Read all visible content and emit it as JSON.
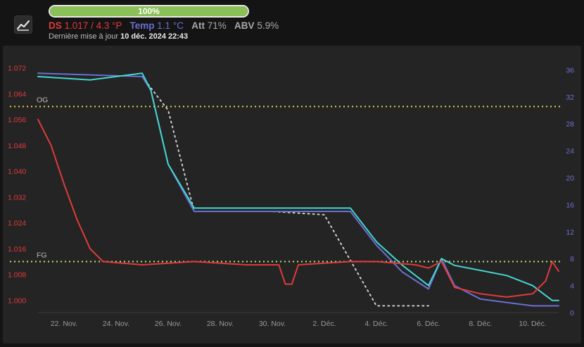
{
  "header": {
    "progress": {
      "value": 1.0,
      "label": "100%"
    },
    "stats": {
      "ds_label": "DS",
      "ds_value": "1.017 / 4.3 °P",
      "temp_label": "Temp",
      "temp_value": "1.1 °C",
      "att_label": "Att",
      "att_value": "71%",
      "abv_label": "ABV",
      "abv_value": "5.9%"
    },
    "updated_prefix": "Dernière mise à jour",
    "updated_value": "10 déc. 2024 22:43"
  },
  "colors": {
    "ds": "#e03a3a",
    "temp": "#6a6fcf",
    "tilt_temp": "#44d6d0",
    "og_line": "#e8d24a",
    "fg_line": "#b8e07a",
    "dotted": "#cfcfcf",
    "progress": "#8bbf58",
    "att": "#a9a9a9",
    "abv": "#a9a9a9"
  },
  "icons": {
    "app": "line-chart-icon"
  },
  "chart_data": {
    "type": "line",
    "x_labels": [
      "22. Nov.",
      "24. Nov.",
      "26. Nov.",
      "28. Nov.",
      "30. Nov.",
      "2. Déc.",
      "4. Déc.",
      "6. Déc.",
      "8. Déc.",
      "10. Déc."
    ],
    "xlim": [
      "2024-11-21",
      "2024-12-11"
    ],
    "y_left": {
      "ticks": [
        "1.072",
        "1.064",
        "1.056",
        "1.048",
        "1.040",
        "1.032",
        "1.024",
        "1.016",
        "1.008",
        "1.000"
      ],
      "range": [
        0.9962,
        1.0745
      ]
    },
    "y_right": {
      "ticks": [
        "36",
        "32",
        "28",
        "24",
        "20",
        "16",
        "12",
        "8",
        "4",
        "0"
      ],
      "range": [
        0,
        37.5
      ]
    },
    "reference_lines": [
      {
        "label": "OG",
        "value": 1.06,
        "axis": "left"
      },
      {
        "label": "FG",
        "value": 1.012,
        "axis": "left"
      }
    ],
    "series": [
      {
        "axis": "left",
        "points": [
          [
            "2024-11-21",
            1.056
          ],
          [
            "2024-11-21 12:00",
            1.048
          ],
          [
            "2024-11-22",
            1.036
          ],
          [
            "2024-11-22 12:00",
            1.025
          ],
          [
            "2024-11-23",
            1.016
          ],
          [
            "2024-11-23 12:00",
            1.012
          ],
          [
            "2024-11-25",
            1.011
          ],
          [
            "2024-11-27",
            1.012
          ],
          [
            "2024-11-29",
            1.011
          ],
          [
            "2024-11-30 06:00",
            1.011
          ],
          [
            "2024-11-30 12:00",
            1.005
          ],
          [
            "2024-11-30 18:00",
            1.005
          ],
          [
            "2024-12-01",
            1.011
          ],
          [
            "2024-12-03",
            1.012
          ],
          [
            "2024-12-04",
            1.012
          ],
          [
            "2024-12-05 12:00",
            1.011
          ],
          [
            "2024-12-06",
            1.01
          ],
          [
            "2024-12-06 12:00",
            1.012
          ],
          [
            "2024-12-07",
            1.004
          ],
          [
            "2024-12-08",
            1.002
          ],
          [
            "2024-12-09",
            1.001
          ],
          [
            "2024-12-10",
            1.002
          ],
          [
            "2024-12-10 12:00",
            1.006
          ],
          [
            "2024-12-10 18:00",
            1.012
          ],
          [
            "2024-12-11",
            1.009
          ]
        ]
      },
      {
        "axis": "right",
        "points": [
          [
            "2024-11-21",
            35.5
          ],
          [
            "2024-11-25",
            35.0
          ],
          [
            "2024-11-25 08:00",
            33.0
          ],
          [
            "2024-11-26",
            22.0
          ],
          [
            "2024-11-27",
            15.0
          ],
          [
            "2024-11-30",
            15.0
          ],
          [
            "2024-12-03",
            15.0
          ],
          [
            "2024-12-04",
            10.0
          ],
          [
            "2024-12-05",
            6.0
          ],
          [
            "2024-12-06",
            3.5
          ],
          [
            "2024-12-06 12:00",
            8.0
          ],
          [
            "2024-12-07",
            4.0
          ],
          [
            "2024-12-08",
            2.0
          ],
          [
            "2024-12-09",
            1.5
          ],
          [
            "2024-12-10",
            1.0
          ],
          [
            "2024-12-11",
            1.0
          ]
        ]
      },
      {
        "axis": "right",
        "points": [
          [
            "2024-11-21",
            35.0
          ],
          [
            "2024-11-23",
            34.5
          ],
          [
            "2024-11-25",
            35.5
          ],
          [
            "2024-11-25 08:00",
            33.0
          ],
          [
            "2024-11-26",
            22.0
          ],
          [
            "2024-11-27",
            15.5
          ],
          [
            "2024-11-30",
            15.5
          ],
          [
            "2024-12-03",
            15.5
          ],
          [
            "2024-12-04",
            10.5
          ],
          [
            "2024-12-05",
            7.0
          ],
          [
            "2024-12-06",
            4.0
          ],
          [
            "2024-12-06 12:00",
            8.0
          ],
          [
            "2024-12-07",
            7.0
          ],
          [
            "2024-12-09",
            5.5
          ],
          [
            "2024-12-10",
            4.0
          ],
          [
            "2024-12-10 18:00",
            1.8
          ],
          [
            "2024-12-11",
            1.8
          ]
        ]
      },
      {
        "axis": "right",
        "points": [
          [
            "2024-11-25",
            35.0
          ],
          [
            "2024-11-26",
            30.0
          ],
          [
            "2024-11-27",
            15.0
          ],
          [
            "2024-11-30",
            15.0
          ],
          [
            "2024-12-02",
            14.5
          ],
          [
            "2024-12-04",
            1.0
          ],
          [
            "2024-12-06",
            1.0
          ]
        ]
      }
    ]
  }
}
